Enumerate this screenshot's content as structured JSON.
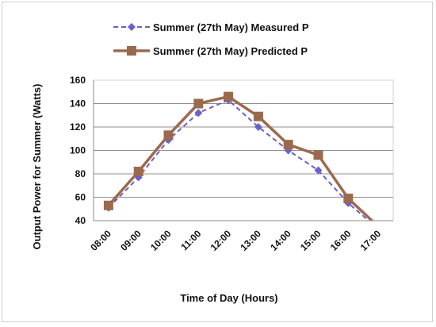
{
  "chart_data": {
    "type": "line",
    "title": "",
    "xlabel": "Time of Day (Hours)",
    "ylabel": "Output Power for Summer (Watts)",
    "categories": [
      "08:00",
      "09:00",
      "10:00",
      "11:00",
      "12:00",
      "13:00",
      "14:00",
      "15:00",
      "16:00",
      "17:00"
    ],
    "ylim": [
      40,
      160
    ],
    "yticks": [
      "40",
      "60",
      "80",
      "100",
      "120",
      "140",
      "160"
    ],
    "grid": true,
    "legend_position": "top",
    "series": [
      {
        "name": "Summer (27th May)  Measured P",
        "values": [
          51,
          77,
          109,
          132,
          143,
          120,
          100,
          83,
          55,
          33
        ],
        "color": "#6b5fc8",
        "line_style": "dashed",
        "marker": "diamond"
      },
      {
        "name": "Summer (27th May)  Predicted P",
        "values": [
          53,
          82,
          113,
          140,
          146,
          129,
          105,
          96,
          59,
          35
        ],
        "color": "#9b6a4e",
        "line_style": "solid",
        "marker": "square"
      }
    ]
  }
}
